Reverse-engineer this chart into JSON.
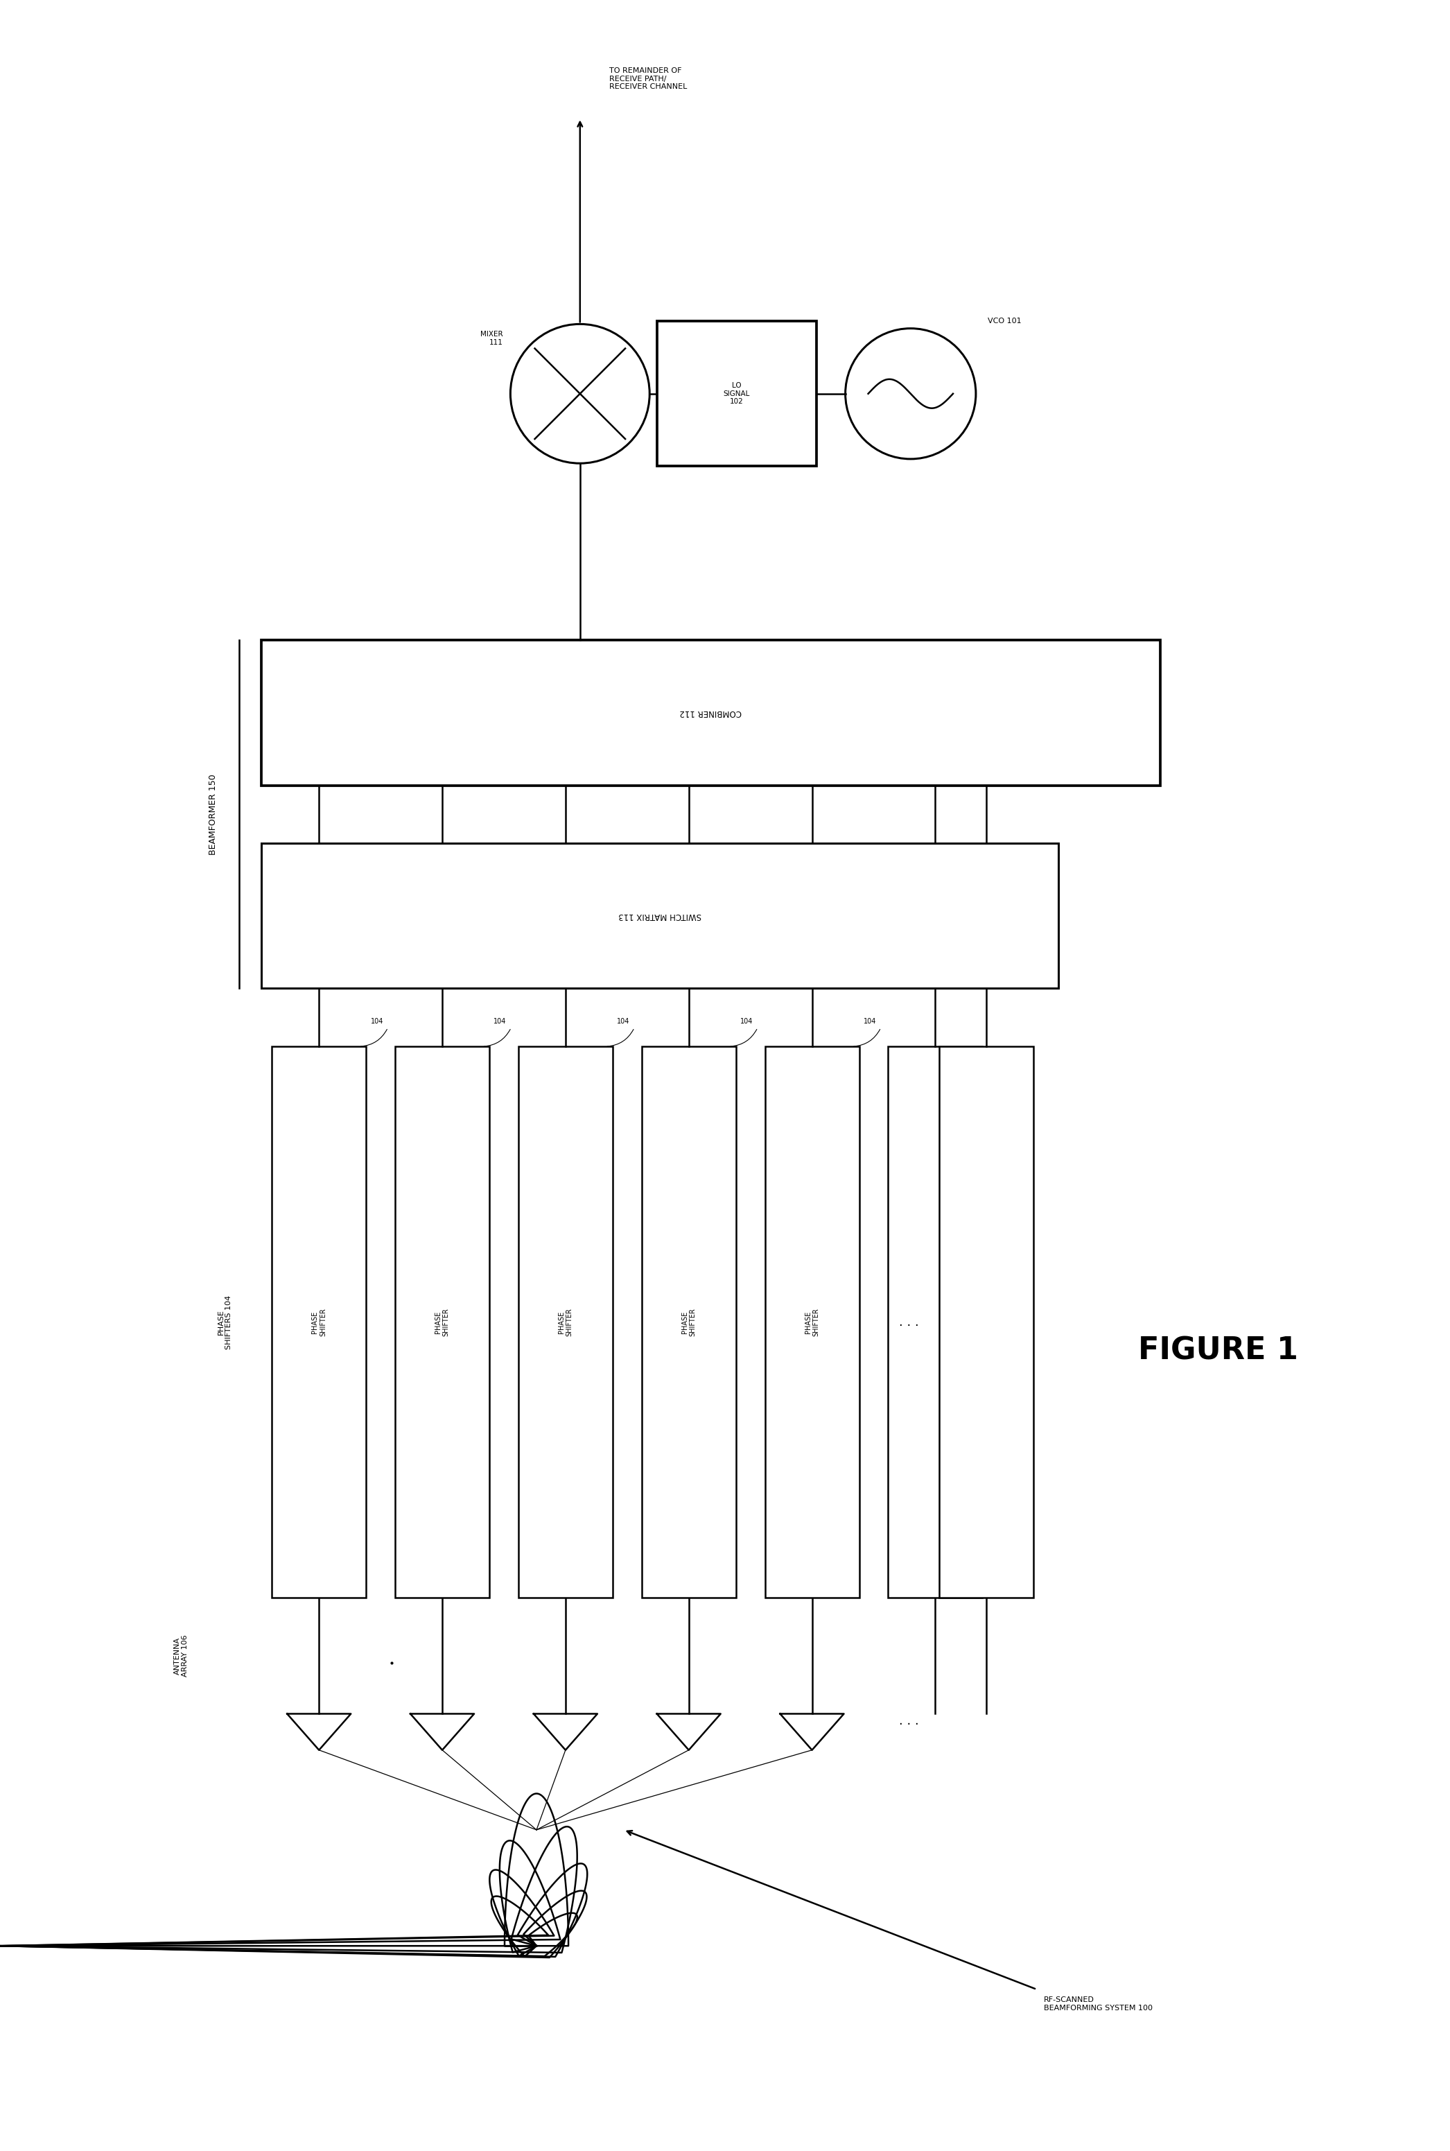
{
  "fig_width": 20.92,
  "fig_height": 31.02,
  "bg_color": "#ffffff",
  "title": "FIGURE 1",
  "combiner_label": "COMBINER 112",
  "switch_matrix_label": "SWITCH MATRIX 113",
  "phase_shifter_label": "PHASE SHIFTER",
  "phase_shifters_label": "PHASE\nSHIFTERS 104",
  "antenna_array_label": "ANTENNA\nARRAY 106",
  "beamformer_label": "BEAMFORMER 150",
  "mixer_label": "MIXER\n111",
  "lo_signal_label": "LO\nSIGNAL\n102",
  "vco_label": "VCO 101",
  "to_receive_label": "TO REMAINDER OF\nRECEIVE PATH/\nRECEIVER CHANNEL",
  "rf_scanned_label": "RF-SCANNED\nBEAMFORMING SYSTEM 100",
  "num_phase_shifters": 5,
  "label_104": "104"
}
